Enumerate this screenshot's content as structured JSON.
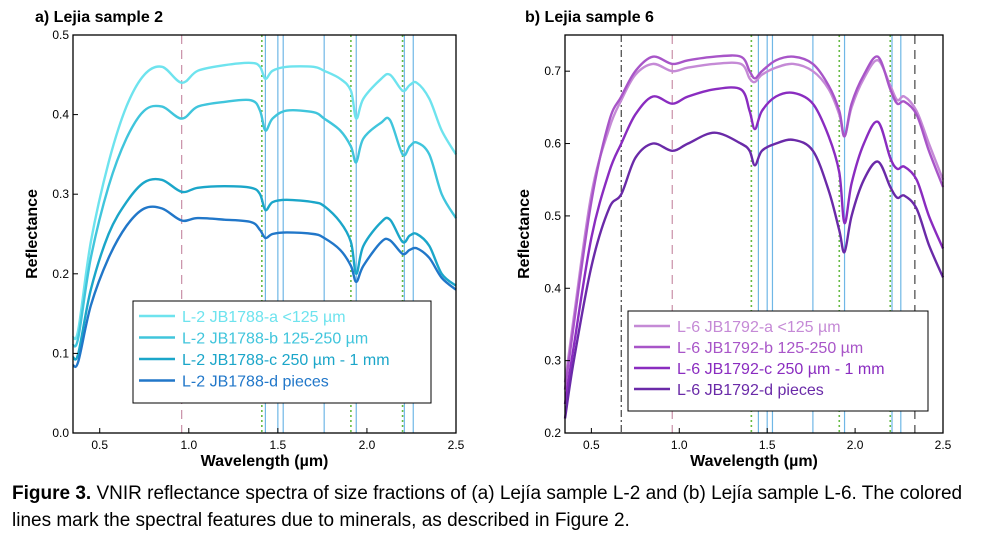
{
  "chart_data": [
    {
      "type": "line",
      "title": "a) Lejia sample 2",
      "xlabel": "Wavelength (µm)",
      "ylabel": "Reflectance",
      "xlim": [
        0.35,
        2.5
      ],
      "ylim": [
        0.0,
        0.5
      ],
      "xticks": [
        0.5,
        1.0,
        1.5,
        2.0,
        2.5
      ],
      "xtick_labels": [
        "0.5",
        "1.0",
        "1.5",
        "2.0",
        "2.5"
      ],
      "yticks": [
        0.0,
        0.1,
        0.2,
        0.3,
        0.4,
        0.5
      ],
      "ytick_labels": [
        "0.0",
        "0.1",
        "0.2",
        "0.3",
        "0.4",
        "0.5"
      ],
      "legend_position": "bottom-center",
      "feature_lines": [
        {
          "x": 0.96,
          "style": "dashed",
          "color": "#c98fa6"
        },
        {
          "x": 1.41,
          "style": "dotted",
          "color": "#66bb44"
        },
        {
          "x": 1.43,
          "style": "solid",
          "color": "#6fb7e6"
        },
        {
          "x": 1.5,
          "style": "solid",
          "color": "#6fb7e6"
        },
        {
          "x": 1.53,
          "style": "solid",
          "color": "#6fb7e6"
        },
        {
          "x": 1.76,
          "style": "solid",
          "color": "#6fb7e6"
        },
        {
          "x": 1.91,
          "style": "dotted",
          "color": "#66bb44"
        },
        {
          "x": 1.94,
          "style": "solid",
          "color": "#6fb7e6"
        },
        {
          "x": 2.2,
          "style": "dotted",
          "color": "#66bb44"
        },
        {
          "x": 2.21,
          "style": "solid",
          "color": "#6fb7e6"
        },
        {
          "x": 2.26,
          "style": "solid",
          "color": "#6fb7e6"
        }
      ],
      "series": [
        {
          "name": "L-2 JB1788-a <125 µm",
          "color": "#6ee3ee",
          "x": [
            0.35,
            0.38,
            0.45,
            0.55,
            0.65,
            0.75,
            0.85,
            0.96,
            1.05,
            1.2,
            1.35,
            1.4,
            1.43,
            1.47,
            1.55,
            1.7,
            1.76,
            1.85,
            1.91,
            1.94,
            1.98,
            2.08,
            2.13,
            2.2,
            2.24,
            2.28,
            2.35,
            2.42,
            2.5
          ],
          "y": [
            0.12,
            0.13,
            0.24,
            0.34,
            0.41,
            0.45,
            0.46,
            0.44,
            0.455,
            0.462,
            0.465,
            0.46,
            0.445,
            0.455,
            0.46,
            0.46,
            0.455,
            0.445,
            0.43,
            0.395,
            0.42,
            0.445,
            0.45,
            0.43,
            0.437,
            0.44,
            0.42,
            0.38,
            0.35
          ]
        },
        {
          "name": "L-2 JB1788-b 125-250 µm",
          "color": "#40c5dc",
          "x": [
            0.35,
            0.38,
            0.45,
            0.55,
            0.65,
            0.75,
            0.85,
            0.96,
            1.05,
            1.2,
            1.35,
            1.4,
            1.43,
            1.47,
            1.55,
            1.7,
            1.76,
            1.85,
            1.91,
            1.94,
            1.98,
            2.08,
            2.13,
            2.2,
            2.24,
            2.28,
            2.35,
            2.42,
            2.5
          ],
          "y": [
            0.11,
            0.12,
            0.22,
            0.31,
            0.37,
            0.405,
            0.41,
            0.395,
            0.41,
            0.416,
            0.418,
            0.405,
            0.38,
            0.395,
            0.405,
            0.403,
            0.395,
            0.38,
            0.36,
            0.34,
            0.37,
            0.39,
            0.393,
            0.35,
            0.36,
            0.365,
            0.35,
            0.3,
            0.27
          ]
        },
        {
          "name": "L-2 JB1788-c 250 µm - 1 mm",
          "color": "#1ba6c9",
          "x": [
            0.35,
            0.38,
            0.45,
            0.55,
            0.65,
            0.75,
            0.85,
            0.96,
            1.05,
            1.2,
            1.35,
            1.4,
            1.43,
            1.47,
            1.55,
            1.7,
            1.76,
            1.85,
            1.91,
            1.94,
            1.98,
            2.08,
            2.13,
            2.2,
            2.24,
            2.28,
            2.35,
            2.42,
            2.5
          ],
          "y": [
            0.095,
            0.1,
            0.18,
            0.25,
            0.29,
            0.315,
            0.318,
            0.303,
            0.308,
            0.31,
            0.308,
            0.3,
            0.28,
            0.29,
            0.293,
            0.29,
            0.285,
            0.265,
            0.24,
            0.2,
            0.235,
            0.265,
            0.268,
            0.24,
            0.248,
            0.25,
            0.235,
            0.2,
            0.185
          ]
        },
        {
          "name": "L-2 JB1788-d pieces",
          "color": "#2177c9",
          "x": [
            0.35,
            0.38,
            0.45,
            0.55,
            0.65,
            0.75,
            0.85,
            0.96,
            1.05,
            1.2,
            1.35,
            1.4,
            1.43,
            1.47,
            1.55,
            1.7,
            1.76,
            1.85,
            1.91,
            1.94,
            1.98,
            2.08,
            2.13,
            2.2,
            2.24,
            2.28,
            2.35,
            2.42,
            2.5
          ],
          "y": [
            0.085,
            0.09,
            0.16,
            0.22,
            0.26,
            0.282,
            0.282,
            0.267,
            0.27,
            0.268,
            0.265,
            0.255,
            0.245,
            0.25,
            0.252,
            0.25,
            0.245,
            0.23,
            0.21,
            0.19,
            0.21,
            0.24,
            0.242,
            0.225,
            0.23,
            0.232,
            0.22,
            0.195,
            0.18
          ]
        }
      ]
    },
    {
      "type": "line",
      "title": "b) Lejia sample 6",
      "xlabel": "Wavelength (µm)",
      "ylabel": "Reflectance",
      "xlim": [
        0.35,
        2.5
      ],
      "ylim": [
        0.2,
        0.75
      ],
      "xticks": [
        0.5,
        1.0,
        1.5,
        2.0,
        2.5
      ],
      "xtick_labels": [
        "0.5",
        "1.0",
        "1.5",
        "2.0",
        "2.5"
      ],
      "yticks": [
        0.2,
        0.3,
        0.4,
        0.5,
        0.6,
        0.7
      ],
      "ytick_labels": [
        "0.2",
        "0.3",
        "0.4",
        "0.5",
        "0.6",
        "0.7"
      ],
      "legend_position": "bottom-center",
      "feature_lines": [
        {
          "x": 0.67,
          "style": "dashdot",
          "color": "#444444"
        },
        {
          "x": 0.96,
          "style": "dashed",
          "color": "#c98fa6"
        },
        {
          "x": 1.41,
          "style": "dotted",
          "color": "#66bb44"
        },
        {
          "x": 1.45,
          "style": "solid",
          "color": "#6fb7e6"
        },
        {
          "x": 1.5,
          "style": "solid",
          "color": "#6fb7e6"
        },
        {
          "x": 1.53,
          "style": "solid",
          "color": "#6fb7e6"
        },
        {
          "x": 1.76,
          "style": "solid",
          "color": "#6fb7e6"
        },
        {
          "x": 1.91,
          "style": "dotted",
          "color": "#66bb44"
        },
        {
          "x": 1.94,
          "style": "solid",
          "color": "#6fb7e6"
        },
        {
          "x": 2.2,
          "style": "dotted",
          "color": "#66bb44"
        },
        {
          "x": 2.21,
          "style": "solid",
          "color": "#6fb7e6"
        },
        {
          "x": 2.26,
          "style": "solid",
          "color": "#6fb7e6"
        },
        {
          "x": 2.34,
          "style": "dashed",
          "color": "#444444"
        }
      ],
      "series": [
        {
          "name": "L-6 JB1792-a <125 µm",
          "color": "#c58ad6",
          "x": [
            0.35,
            0.4,
            0.5,
            0.6,
            0.67,
            0.75,
            0.85,
            0.96,
            1.05,
            1.2,
            1.35,
            1.4,
            1.43,
            1.47,
            1.55,
            1.65,
            1.76,
            1.85,
            1.91,
            1.94,
            1.98,
            2.05,
            2.13,
            2.2,
            2.24,
            2.28,
            2.35,
            2.42,
            2.5
          ],
          "y": [
            0.27,
            0.36,
            0.53,
            0.62,
            0.66,
            0.695,
            0.71,
            0.7,
            0.705,
            0.71,
            0.71,
            0.69,
            0.685,
            0.695,
            0.705,
            0.71,
            0.7,
            0.675,
            0.64,
            0.61,
            0.65,
            0.69,
            0.715,
            0.68,
            0.66,
            0.665,
            0.645,
            0.6,
            0.55
          ]
        },
        {
          "name": "L-6 JB1792-b 125-250 µm",
          "color": "#a855c8",
          "x": [
            0.35,
            0.4,
            0.5,
            0.6,
            0.67,
            0.75,
            0.85,
            0.96,
            1.05,
            1.2,
            1.35,
            1.4,
            1.43,
            1.47,
            1.55,
            1.65,
            1.76,
            1.85,
            1.91,
            1.94,
            1.98,
            2.05,
            2.13,
            2.2,
            2.24,
            2.28,
            2.35,
            2.42,
            2.5
          ],
          "y": [
            0.26,
            0.35,
            0.52,
            0.63,
            0.665,
            0.7,
            0.72,
            0.71,
            0.715,
            0.72,
            0.72,
            0.7,
            0.69,
            0.7,
            0.715,
            0.72,
            0.71,
            0.68,
            0.645,
            0.61,
            0.655,
            0.695,
            0.72,
            0.675,
            0.655,
            0.658,
            0.64,
            0.59,
            0.54
          ]
        },
        {
          "name": "L-6 JB1792-c 250 µm - 1 mm",
          "color": "#8a2cc0",
          "x": [
            0.35,
            0.4,
            0.5,
            0.6,
            0.67,
            0.75,
            0.85,
            0.96,
            1.05,
            1.2,
            1.35,
            1.4,
            1.43,
            1.47,
            1.55,
            1.65,
            1.76,
            1.85,
            1.91,
            1.94,
            1.98,
            2.05,
            2.13,
            2.2,
            2.24,
            2.28,
            2.35,
            2.42,
            2.5
          ],
          "y": [
            0.24,
            0.32,
            0.47,
            0.56,
            0.6,
            0.64,
            0.665,
            0.655,
            0.665,
            0.675,
            0.675,
            0.645,
            0.62,
            0.645,
            0.665,
            0.67,
            0.655,
            0.61,
            0.56,
            0.49,
            0.545,
            0.6,
            0.63,
            0.58,
            0.565,
            0.568,
            0.55,
            0.5,
            0.455
          ]
        },
        {
          "name": "L-6 JB1792-d pieces",
          "color": "#6a2aa8",
          "x": [
            0.35,
            0.4,
            0.5,
            0.6,
            0.67,
            0.75,
            0.85,
            0.96,
            1.05,
            1.2,
            1.35,
            1.4,
            1.43,
            1.47,
            1.55,
            1.65,
            1.76,
            1.85,
            1.91,
            1.94,
            1.98,
            2.05,
            2.13,
            2.2,
            2.24,
            2.28,
            2.35,
            2.42,
            2.5
          ],
          "y": [
            0.22,
            0.3,
            0.43,
            0.51,
            0.53,
            0.58,
            0.6,
            0.59,
            0.6,
            0.615,
            0.6,
            0.59,
            0.57,
            0.59,
            0.6,
            0.605,
            0.59,
            0.535,
            0.48,
            0.45,
            0.5,
            0.55,
            0.575,
            0.54,
            0.525,
            0.528,
            0.51,
            0.46,
            0.415
          ]
        }
      ]
    }
  ],
  "caption": {
    "label": "Figure 3.",
    "text": " VNIR reflectance spectra of size fractions of (a) Lejía sample L-2 and (b) Lejía sample L-6. The colored lines mark the spectral features due to minerals, as described in Figure 2."
  }
}
